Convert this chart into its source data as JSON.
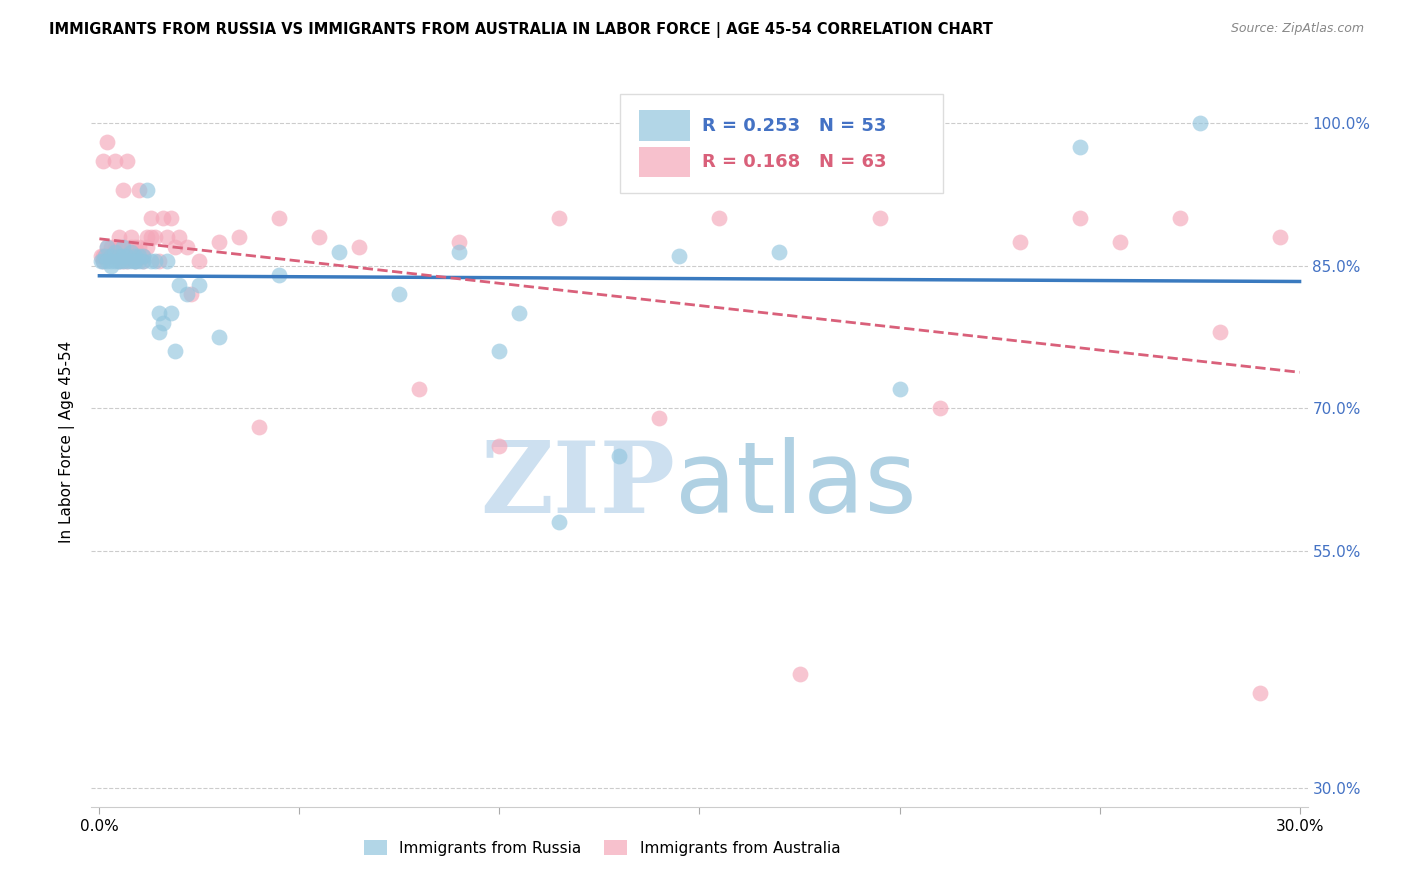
{
  "title": "IMMIGRANTS FROM RUSSIA VS IMMIGRANTS FROM AUSTRALIA IN LABOR FORCE | AGE 45-54 CORRELATION CHART",
  "source": "Source: ZipAtlas.com",
  "ylabel": "In Labor Force | Age 45-54",
  "xlim": [
    -0.002,
    0.302
  ],
  "ylim": [
    0.28,
    1.05
  ],
  "yticks": [
    0.3,
    0.55,
    0.7,
    0.85,
    1.0
  ],
  "ytick_labels": [
    "30.0%",
    "55.0%",
    "70.0%",
    "85.0%",
    "100.0%"
  ],
  "xticks": [
    0.0,
    0.05,
    0.1,
    0.15,
    0.2,
    0.25,
    0.3
  ],
  "xtick_labels": [
    "0.0%",
    "",
    "",
    "",
    "",
    "",
    "30.0%"
  ],
  "legend_russia_R": "0.253",
  "legend_russia_N": "53",
  "legend_australia_R": "0.168",
  "legend_australia_N": "63",
  "blue_color": "#92c5de",
  "pink_color": "#f4a7b9",
  "blue_line_color": "#3a7abf",
  "pink_line_color": "#d9607a",
  "russia_x": [
    0.0005,
    0.001,
    0.0015,
    0.002,
    0.002,
    0.003,
    0.003,
    0.003,
    0.004,
    0.004,
    0.005,
    0.005,
    0.005,
    0.006,
    0.006,
    0.006,
    0.007,
    0.007,
    0.008,
    0.008,
    0.009,
    0.009,
    0.009,
    0.01,
    0.01,
    0.011,
    0.011,
    0.012,
    0.013,
    0.014,
    0.015,
    0.015,
    0.016,
    0.017,
    0.018,
    0.019,
    0.02,
    0.022,
    0.025,
    0.03,
    0.045,
    0.06,
    0.075,
    0.09,
    0.1,
    0.105,
    0.115,
    0.13,
    0.145,
    0.17,
    0.2,
    0.245,
    0.275
  ],
  "russia_y": [
    0.855,
    0.855,
    0.86,
    0.855,
    0.87,
    0.855,
    0.86,
    0.85,
    0.855,
    0.865,
    0.855,
    0.86,
    0.855,
    0.86,
    0.855,
    0.87,
    0.855,
    0.86,
    0.865,
    0.855,
    0.855,
    0.86,
    0.855,
    0.855,
    0.86,
    0.855,
    0.86,
    0.93,
    0.855,
    0.855,
    0.78,
    0.8,
    0.79,
    0.855,
    0.8,
    0.76,
    0.83,
    0.82,
    0.83,
    0.775,
    0.84,
    0.865,
    0.82,
    0.865,
    0.76,
    0.8,
    0.58,
    0.65,
    0.86,
    0.865,
    0.72,
    0.975,
    1.0
  ],
  "australia_x": [
    0.0005,
    0.0008,
    0.001,
    0.001,
    0.0015,
    0.002,
    0.002,
    0.003,
    0.003,
    0.004,
    0.004,
    0.005,
    0.005,
    0.005,
    0.006,
    0.006,
    0.006,
    0.007,
    0.007,
    0.008,
    0.008,
    0.009,
    0.009,
    0.01,
    0.01,
    0.011,
    0.011,
    0.012,
    0.012,
    0.013,
    0.013,
    0.014,
    0.015,
    0.016,
    0.017,
    0.018,
    0.019,
    0.02,
    0.022,
    0.023,
    0.025,
    0.03,
    0.035,
    0.04,
    0.045,
    0.055,
    0.065,
    0.08,
    0.09,
    0.1,
    0.115,
    0.14,
    0.155,
    0.175,
    0.195,
    0.21,
    0.23,
    0.245,
    0.255,
    0.27,
    0.28,
    0.29,
    0.295
  ],
  "australia_y": [
    0.86,
    0.855,
    0.86,
    0.96,
    0.86,
    0.98,
    0.87,
    0.87,
    0.86,
    0.87,
    0.96,
    0.855,
    0.87,
    0.88,
    0.855,
    0.87,
    0.93,
    0.855,
    0.96,
    0.87,
    0.88,
    0.87,
    0.855,
    0.93,
    0.87,
    0.86,
    0.855,
    0.88,
    0.87,
    0.9,
    0.88,
    0.88,
    0.855,
    0.9,
    0.88,
    0.9,
    0.87,
    0.88,
    0.87,
    0.82,
    0.855,
    0.875,
    0.88,
    0.68,
    0.9,
    0.88,
    0.87,
    0.72,
    0.875,
    0.66,
    0.9,
    0.69,
    0.9,
    0.42,
    0.9,
    0.7,
    0.875,
    0.9,
    0.875,
    0.9,
    0.78,
    0.4,
    0.88
  ]
}
